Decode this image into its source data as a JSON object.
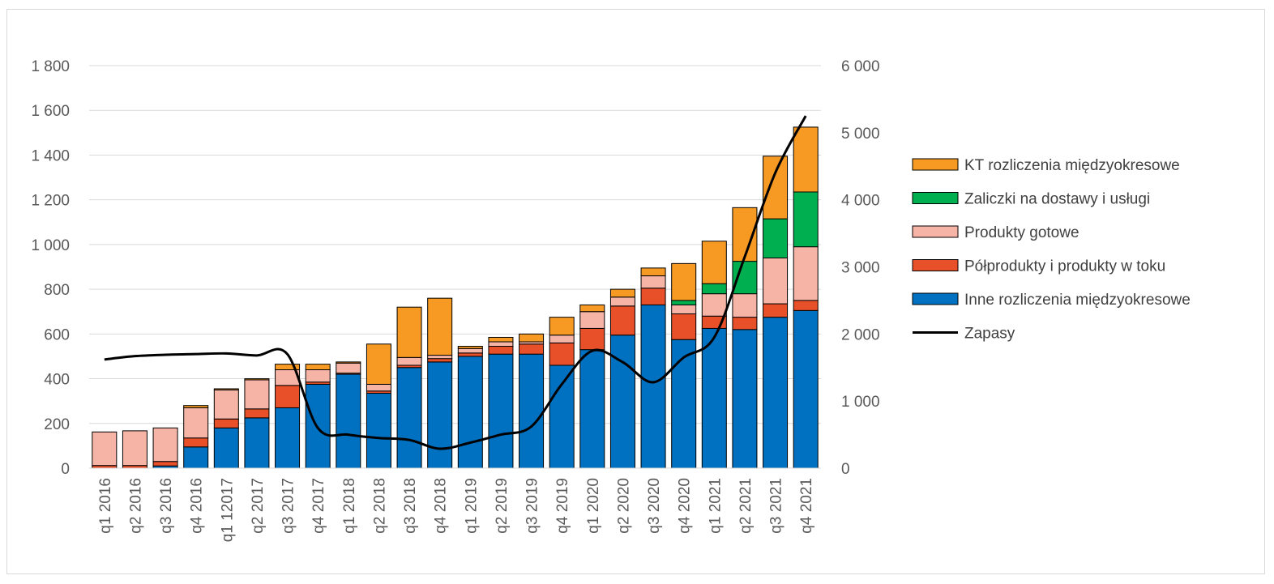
{
  "chart_data": {
    "type": "bar",
    "stacked": true,
    "categories": [
      "q1 2016",
      "q2 2016",
      "q3 2016",
      "q4 2016",
      "q1 12017",
      "q2 2017",
      "q3 2017",
      "q4 2017",
      "q1 2018",
      "q2 2018",
      "q3 2018",
      "q4 2018",
      "q1 2019",
      "q2 2019",
      "q3 2019",
      "q4 2019",
      "q1 2020",
      "q2 2020",
      "q3 2020",
      "q4 2020",
      "q1 2021",
      "q2 2021",
      "q3 2021",
      "q4 2021"
    ],
    "ylim": [
      0,
      1800
    ],
    "y_ticks": [
      0,
      200,
      400,
      600,
      800,
      1000,
      1200,
      1400,
      1600,
      1800
    ],
    "y_tick_labels": [
      "0",
      "200",
      "400",
      "600",
      "800",
      "1 000",
      "1 200",
      "1 400",
      "1 600",
      "1 800"
    ],
    "y2lim": [
      0,
      6000
    ],
    "y2_ticks": [
      0,
      1000,
      2000,
      3000,
      4000,
      5000,
      6000
    ],
    "y2_tick_labels": [
      "0",
      "1 000",
      "2 000",
      "3 000",
      "4 000",
      "5 000",
      "6 000"
    ],
    "grid": true,
    "legend_position": "right",
    "series": [
      {
        "name": "Inne rozliczenia międzyokresowe",
        "color": "#0070c0",
        "axis": "left",
        "values": [
          0,
          0,
          10,
          95,
          180,
          225,
          270,
          375,
          420,
          335,
          450,
          475,
          500,
          510,
          510,
          460,
          530,
          595,
          730,
          575,
          625,
          620,
          675,
          705
        ]
      },
      {
        "name": "Półprodukty i produkty w toku",
        "color": "#e8502a",
        "axis": "left",
        "values": [
          12,
          12,
          20,
          40,
          40,
          40,
          100,
          10,
          5,
          10,
          10,
          15,
          15,
          35,
          45,
          100,
          95,
          130,
          75,
          115,
          55,
          55,
          60,
          45
        ]
      },
      {
        "name": "Produkty gotowe",
        "color": "#f5b4a6",
        "axis": "left",
        "values": [
          150,
          155,
          150,
          135,
          130,
          130,
          70,
          55,
          45,
          30,
          35,
          15,
          20,
          20,
          10,
          35,
          75,
          40,
          55,
          40,
          100,
          105,
          205,
          240
        ]
      },
      {
        "name": "Zaliczki na dostawy i usługi",
        "color": "#00b050",
        "axis": "left",
        "values": [
          0,
          0,
          0,
          0,
          0,
          0,
          0,
          0,
          0,
          0,
          0,
          0,
          0,
          0,
          0,
          0,
          0,
          0,
          0,
          20,
          45,
          145,
          175,
          245
        ]
      },
      {
        "name": "KT rozliczenia międzyokresowe",
        "color": "#f79a24",
        "axis": "left",
        "values": [
          0,
          0,
          0,
          10,
          5,
          5,
          25,
          25,
          5,
          180,
          225,
          255,
          10,
          20,
          35,
          80,
          30,
          35,
          35,
          165,
          190,
          240,
          280,
          290
        ]
      },
      {
        "name": "Zapasy",
        "type": "line",
        "color": "#000000",
        "axis": "right",
        "values": [
          1620,
          1670,
          1690,
          1700,
          1710,
          1680,
          1700,
          600,
          500,
          450,
          420,
          290,
          380,
          500,
          620,
          1250,
          1750,
          1580,
          1280,
          1650,
          1950,
          3150,
          4400,
          5250
        ]
      }
    ],
    "legend_order": [
      "KT rozliczenia międzyokresowe",
      "Zaliczki na dostawy i usługi",
      "Produkty gotowe",
      "Półprodukty i produkty w toku",
      "Inne rozliczenia międzyokresowe",
      "Zapasy"
    ]
  }
}
